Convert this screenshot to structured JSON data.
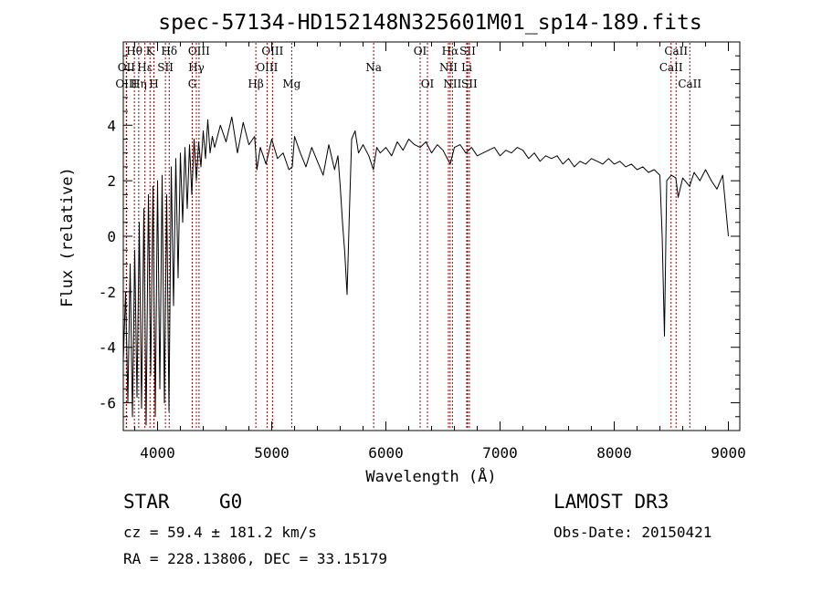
{
  "chart_data": {
    "type": "line",
    "title": "spec-57134-HD152148N325601M01_sp14-189.fits",
    "xlabel": "Wavelength (Å)",
    "ylabel": "Flux (relative)",
    "xlim": [
      3700,
      9100
    ],
    "ylim": [
      -7,
      7
    ],
    "xticks": [
      4000,
      5000,
      6000,
      7000,
      8000,
      9000
    ],
    "yticks": [
      -6,
      -4,
      -2,
      0,
      2,
      4
    ],
    "series": [
      {
        "name": "flux",
        "points": [
          [
            3700,
            -4.5
          ],
          [
            3720,
            -2.0
          ],
          [
            3740,
            -6.0
          ],
          [
            3760,
            -1.0
          ],
          [
            3780,
            -6.5
          ],
          [
            3800,
            -0.5
          ],
          [
            3820,
            -5.8
          ],
          [
            3840,
            0.5
          ],
          [
            3860,
            -6.2
          ],
          [
            3880,
            1.0
          ],
          [
            3900,
            -6.8
          ],
          [
            3920,
            1.5
          ],
          [
            3940,
            -5.0
          ],
          [
            3960,
            1.8
          ],
          [
            3980,
            -6.5
          ],
          [
            4000,
            2.0
          ],
          [
            4020,
            -5.5
          ],
          [
            4040,
            2.2
          ],
          [
            4060,
            -6.0
          ],
          [
            4080,
            1.5
          ],
          [
            4100,
            -6.3
          ],
          [
            4120,
            2.5
          ],
          [
            4140,
            -2.5
          ],
          [
            4160,
            2.8
          ],
          [
            4180,
            -1.5
          ],
          [
            4200,
            3.0
          ],
          [
            4220,
            0.5
          ],
          [
            4240,
            3.2
          ],
          [
            4260,
            1.0
          ],
          [
            4280,
            3.3
          ],
          [
            4300,
            1.5
          ],
          [
            4320,
            3.5
          ],
          [
            4340,
            2.0
          ],
          [
            4360,
            3.4
          ],
          [
            4380,
            2.5
          ],
          [
            4400,
            3.8
          ],
          [
            4420,
            2.8
          ],
          [
            4440,
            4.2
          ],
          [
            4460,
            3.0
          ],
          [
            4480,
            3.6
          ],
          [
            4500,
            3.2
          ],
          [
            4550,
            4.0
          ],
          [
            4600,
            3.4
          ],
          [
            4650,
            4.3
          ],
          [
            4700,
            3.0
          ],
          [
            4750,
            4.1
          ],
          [
            4800,
            3.3
          ],
          [
            4850,
            3.6
          ],
          [
            4870,
            2.4
          ],
          [
            4900,
            3.2
          ],
          [
            4950,
            2.6
          ],
          [
            5000,
            3.5
          ],
          [
            5050,
            2.8
          ],
          [
            5100,
            3.0
          ],
          [
            5150,
            2.4
          ],
          [
            5180,
            2.5
          ],
          [
            5200,
            3.6
          ],
          [
            5250,
            3.0
          ],
          [
            5300,
            2.5
          ],
          [
            5350,
            3.2
          ],
          [
            5400,
            2.7
          ],
          [
            5450,
            2.2
          ],
          [
            5500,
            3.3
          ],
          [
            5550,
            2.4
          ],
          [
            5580,
            2.9
          ],
          [
            5600,
            1.8
          ],
          [
            5620,
            0.5
          ],
          [
            5640,
            -0.6
          ],
          [
            5660,
            -2.1
          ],
          [
            5680,
            0.8
          ],
          [
            5700,
            3.5
          ],
          [
            5730,
            3.8
          ],
          [
            5760,
            3.0
          ],
          [
            5800,
            3.3
          ],
          [
            5850,
            2.9
          ],
          [
            5890,
            2.4
          ],
          [
            5920,
            3.2
          ],
          [
            5950,
            3.0
          ],
          [
            6000,
            3.2
          ],
          [
            6050,
            2.9
          ],
          [
            6100,
            3.4
          ],
          [
            6150,
            3.1
          ],
          [
            6200,
            3.5
          ],
          [
            6250,
            3.3
          ],
          [
            6300,
            3.2
          ],
          [
            6350,
            3.4
          ],
          [
            6400,
            3.0
          ],
          [
            6450,
            3.3
          ],
          [
            6500,
            3.1
          ],
          [
            6563,
            2.6
          ],
          [
            6600,
            3.2
          ],
          [
            6650,
            3.3
          ],
          [
            6700,
            3.0
          ],
          [
            6750,
            3.2
          ],
          [
            6800,
            2.9
          ],
          [
            6850,
            3.0
          ],
          [
            6900,
            3.1
          ],
          [
            6950,
            3.2
          ],
          [
            7000,
            2.9
          ],
          [
            7050,
            3.1
          ],
          [
            7100,
            3.0
          ],
          [
            7150,
            3.2
          ],
          [
            7200,
            3.1
          ],
          [
            7250,
            2.8
          ],
          [
            7300,
            3.0
          ],
          [
            7350,
            2.7
          ],
          [
            7400,
            2.9
          ],
          [
            7450,
            2.8
          ],
          [
            7500,
            2.9
          ],
          [
            7550,
            2.6
          ],
          [
            7600,
            2.8
          ],
          [
            7650,
            2.5
          ],
          [
            7700,
            2.7
          ],
          [
            7750,
            2.6
          ],
          [
            7800,
            2.8
          ],
          [
            7850,
            2.7
          ],
          [
            7900,
            2.6
          ],
          [
            7950,
            2.8
          ],
          [
            8000,
            2.6
          ],
          [
            8050,
            2.7
          ],
          [
            8100,
            2.5
          ],
          [
            8150,
            2.6
          ],
          [
            8200,
            2.4
          ],
          [
            8250,
            2.5
          ],
          [
            8300,
            2.3
          ],
          [
            8350,
            2.4
          ],
          [
            8400,
            2.2
          ],
          [
            8420,
            0.0
          ],
          [
            8440,
            -3.6
          ],
          [
            8460,
            2.0
          ],
          [
            8500,
            2.2
          ],
          [
            8540,
            2.1
          ],
          [
            8560,
            1.4
          ],
          [
            8600,
            2.1
          ],
          [
            8660,
            1.8
          ],
          [
            8700,
            2.3
          ],
          [
            8750,
            2.0
          ],
          [
            8800,
            2.4
          ],
          [
            8850,
            2.0
          ],
          [
            8900,
            1.7
          ],
          [
            8950,
            2.2
          ],
          [
            9000,
            0.0
          ]
        ]
      }
    ],
    "line_markers": [
      {
        "label": "Hθ",
        "wavelength": 3797,
        "row": 0
      },
      {
        "label": "OII",
        "wavelength": 3727,
        "row": 1
      },
      {
        "label": "OIII",
        "wavelength": 3727,
        "row": 2
      },
      {
        "label": "K",
        "wavelength": 3934,
        "row": 0
      },
      {
        "label": "Hε",
        "wavelength": 3889,
        "row": 1
      },
      {
        "label": "Hη",
        "wavelength": 3835,
        "row": 2
      },
      {
        "label": "H",
        "wavelength": 3968,
        "row": 2
      },
      {
        "label": "SII",
        "wavelength": 4069,
        "row": 1
      },
      {
        "label": "Hδ",
        "wavelength": 4102,
        "row": 0
      },
      {
        "label": "OIII",
        "wavelength": 4363,
        "row": 0
      },
      {
        "label": "Hγ",
        "wavelength": 4340,
        "row": 1
      },
      {
        "label": "G",
        "wavelength": 4304,
        "row": 2
      },
      {
        "label": "Hβ",
        "wavelength": 4861,
        "row": 2
      },
      {
        "label": "OIII",
        "wavelength": 5007,
        "row": 0
      },
      {
        "label": "OIII",
        "wavelength": 4959,
        "row": 1
      },
      {
        "label": "Mg",
        "wavelength": 5175,
        "row": 2
      },
      {
        "label": "Na",
        "wavelength": 5893,
        "row": 1
      },
      {
        "label": "OI",
        "wavelength": 6300,
        "row": 0
      },
      {
        "label": "OI",
        "wavelength": 6364,
        "row": 2
      },
      {
        "label": "Hα",
        "wavelength": 6563,
        "row": 0
      },
      {
        "label": "NII",
        "wavelength": 6548,
        "row": 1
      },
      {
        "label": "NII",
        "wavelength": 6583,
        "row": 2
      },
      {
        "label": "SII",
        "wavelength": 6716,
        "row": 0
      },
      {
        "label": "Li",
        "wavelength": 6708,
        "row": 1
      },
      {
        "label": "SII",
        "wavelength": 6731,
        "row": 2
      },
      {
        "label": "CaII",
        "wavelength": 8542,
        "row": 0
      },
      {
        "label": "CaII",
        "wavelength": 8498,
        "row": 1
      },
      {
        "label": "CaII",
        "wavelength": 8662,
        "row": 2
      }
    ]
  },
  "info": {
    "class": "STAR",
    "subclass": "G0",
    "survey": "LAMOST DR3",
    "cz": "cz = 59.4 ± 181.2 km/s",
    "obs_date": "Obs-Date: 20150421",
    "coords": "RA = 228.13806, DEC =  33.15179"
  },
  "colors": {
    "line": "#000000",
    "marker": "#a40000"
  }
}
